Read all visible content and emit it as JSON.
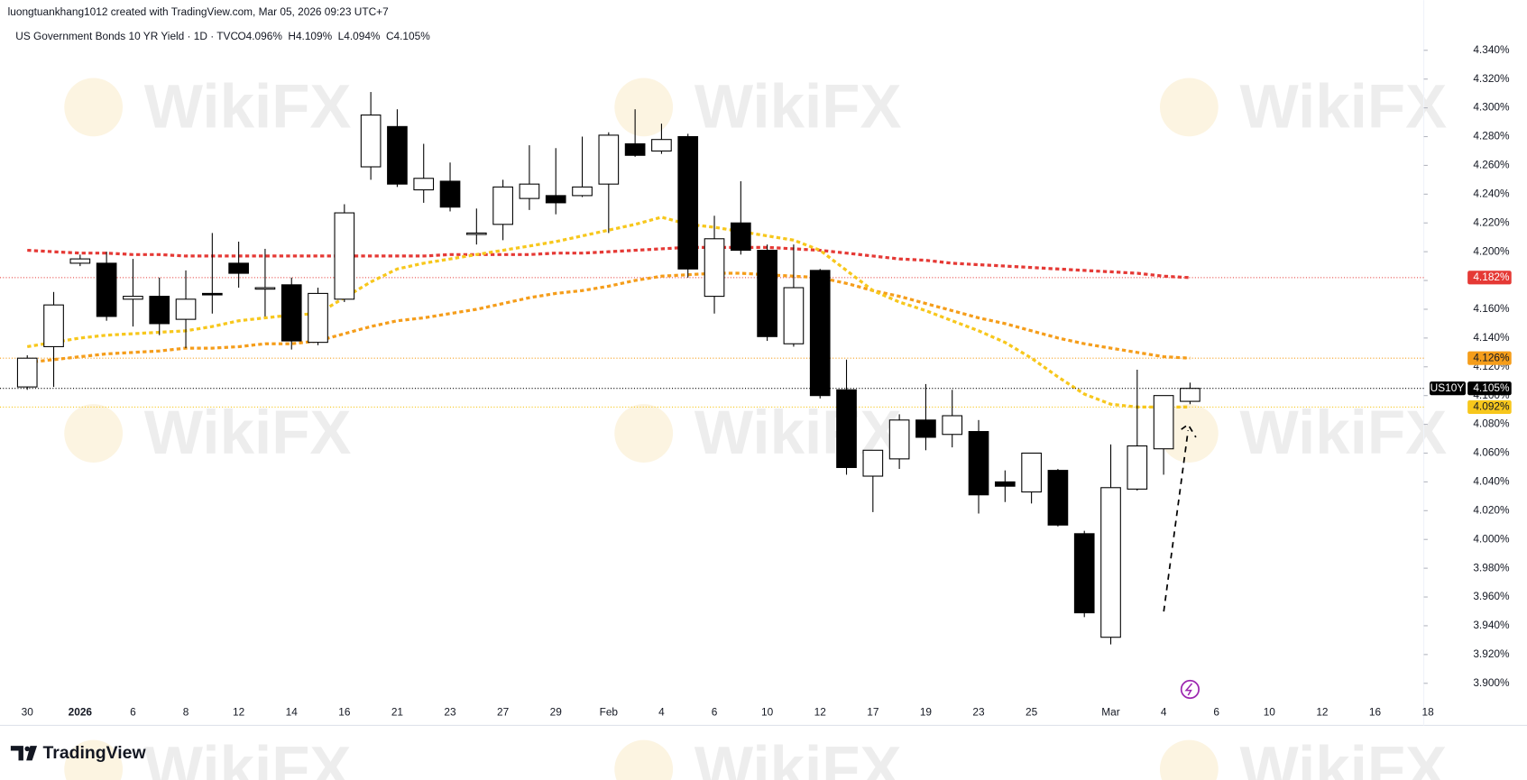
{
  "header": {
    "attribution": "luongtuankhang1012 created with TradingView.com, Mar 05, 2026 09:23 UTC+7",
    "symbol": "US Government Bonds 10 YR Yield · 1D · TVC",
    "ohlc_labels": [
      "O4.096%",
      "H4.109%",
      "L4.094%",
      "C4.105%"
    ]
  },
  "watermark": "WikiFX",
  "footer": {
    "brand": "TradingView"
  },
  "chart_data": {
    "type": "candlestick",
    "categories": [
      "30",
      null,
      "2026",
      null,
      "6",
      null,
      "8",
      null,
      "12",
      null,
      "14",
      null,
      "16",
      null,
      "21",
      null,
      "23",
      null,
      "27",
      null,
      "29",
      null,
      "Feb",
      null,
      "4",
      null,
      "6",
      null,
      "10",
      null,
      "12",
      null,
      "17",
      null,
      "19",
      null,
      "23",
      null,
      "25",
      null,
      null,
      "Mar",
      null,
      "4",
      null
    ],
    "future_x_labels": [
      "6",
      "10",
      "12",
      "16",
      "18"
    ],
    "open": [
      4.106,
      4.134,
      4.192,
      4.192,
      4.167,
      4.169,
      4.153,
      4.171,
      4.192,
      4.175,
      4.177,
      4.137,
      4.167,
      4.259,
      4.287,
      4.243,
      4.249,
      4.213,
      4.219,
      4.237,
      4.239,
      4.239,
      4.247,
      4.275,
      4.27,
      4.28,
      4.169,
      4.22,
      4.201,
      4.136,
      4.187,
      4.104,
      4.044,
      4.056,
      4.083,
      4.073,
      4.075,
      4.04,
      4.033,
      4.048,
      4.004,
      3.932,
      4.035,
      4.063,
      4.096
    ],
    "high": [
      4.128,
      4.172,
      4.198,
      4.2,
      4.195,
      4.182,
      4.187,
      4.213,
      4.207,
      4.202,
      4.182,
      4.175,
      4.233,
      4.311,
      4.299,
      4.275,
      4.262,
      4.23,
      4.25,
      4.274,
      4.272,
      4.28,
      4.283,
      4.299,
      4.289,
      4.282,
      4.225,
      4.249,
      4.205,
      4.205,
      4.188,
      4.125,
      4.062,
      4.087,
      4.108,
      4.104,
      4.083,
      4.048,
      4.06,
      4.049,
      4.006,
      4.066,
      4.118,
      4.1,
      4.109
    ],
    "low": [
      4.104,
      4.106,
      4.19,
      4.152,
      4.148,
      4.142,
      4.133,
      4.157,
      4.175,
      4.155,
      4.132,
      4.135,
      4.165,
      4.25,
      4.245,
      4.234,
      4.228,
      4.205,
      4.208,
      4.229,
      4.226,
      4.238,
      4.213,
      4.266,
      4.268,
      4.182,
      4.157,
      4.198,
      4.138,
      4.134,
      4.098,
      4.045,
      4.019,
      4.049,
      4.062,
      4.064,
      4.018,
      4.026,
      4.025,
      4.009,
      3.946,
      3.927,
      4.034,
      4.045,
      4.094
    ],
    "close": [
      4.126,
      4.163,
      4.195,
      4.155,
      4.169,
      4.15,
      4.167,
      4.17,
      4.185,
      4.175,
      4.138,
      4.171,
      4.227,
      4.295,
      4.247,
      4.251,
      4.231,
      4.213,
      4.245,
      4.247,
      4.234,
      4.245,
      4.281,
      4.267,
      4.278,
      4.188,
      4.209,
      4.201,
      4.141,
      4.175,
      4.1,
      4.05,
      4.062,
      4.083,
      4.071,
      4.086,
      4.031,
      4.037,
      4.06,
      4.01,
      3.949,
      4.036,
      4.065,
      4.1,
      4.105
    ],
    "up_color": "#ffffff",
    "down_color": "#000000",
    "last_price": {
      "name": "US10Y",
      "value": 4.105,
      "label": "4.105%"
    },
    "series": [
      {
        "color": "#e53935",
        "last_label": "4.182%",
        "values": [
          4.201,
          4.2,
          4.199,
          4.199,
          4.198,
          4.198,
          4.197,
          4.197,
          4.197,
          4.197,
          4.197,
          4.197,
          4.197,
          4.197,
          4.197,
          4.197,
          4.198,
          4.198,
          4.198,
          4.198,
          4.199,
          4.199,
          4.2,
          4.201,
          4.202,
          4.203,
          4.203,
          4.203,
          4.203,
          4.202,
          4.201,
          4.199,
          4.197,
          4.195,
          4.194,
          4.192,
          4.191,
          4.19,
          4.189,
          4.188,
          4.187,
          4.186,
          4.185,
          4.183,
          4.182
        ]
      },
      {
        "color": "#f59d1a",
        "last_label": "4.126%",
        "values": [
          4.123,
          4.125,
          4.127,
          4.129,
          4.13,
          4.131,
          4.133,
          4.133,
          4.134,
          4.136,
          4.136,
          4.138,
          4.143,
          4.148,
          4.152,
          4.154,
          4.157,
          4.16,
          4.164,
          4.168,
          4.171,
          4.173,
          4.176,
          4.18,
          4.183,
          4.184,
          4.185,
          4.185,
          4.184,
          4.183,
          4.182,
          4.178,
          4.173,
          4.169,
          4.164,
          4.159,
          4.154,
          4.15,
          4.145,
          4.14,
          4.136,
          4.133,
          4.13,
          4.127,
          4.126
        ]
      },
      {
        "color": "#f7c71c",
        "last_label": "4.092%",
        "values": [
          4.134,
          4.137,
          4.14,
          4.142,
          4.143,
          4.144,
          4.145,
          4.148,
          4.152,
          4.154,
          4.156,
          4.157,
          4.168,
          4.179,
          4.188,
          4.192,
          4.195,
          4.198,
          4.201,
          4.204,
          4.207,
          4.211,
          4.215,
          4.219,
          4.224,
          4.219,
          4.217,
          4.214,
          4.211,
          4.208,
          4.201,
          4.187,
          4.173,
          4.165,
          4.159,
          4.152,
          4.145,
          4.137,
          4.126,
          4.113,
          4.101,
          4.094,
          4.092,
          4.092,
          4.092
        ]
      }
    ],
    "ylim": [
      3.889,
      4.358
    ],
    "yticks": [
      {
        "value": 4.34,
        "label": "4.340%"
      },
      {
        "value": 4.32,
        "label": "4.320%"
      },
      {
        "value": 4.3,
        "label": "4.300%"
      },
      {
        "value": 4.28,
        "label": "4.280%"
      },
      {
        "value": 4.26,
        "label": "4.260%"
      },
      {
        "value": 4.24,
        "label": "4.240%"
      },
      {
        "value": 4.22,
        "label": "4.220%"
      },
      {
        "value": 4.2,
        "label": "4.200%"
      },
      {
        "value": 4.18,
        "label": "4.180%"
      },
      {
        "value": 4.16,
        "label": "4.160%"
      },
      {
        "value": 4.14,
        "label": "4.140%"
      },
      {
        "value": 4.12,
        "label": "4.120%"
      },
      {
        "value": 4.1,
        "label": "4.100%"
      },
      {
        "value": 4.08,
        "label": "4.080%"
      },
      {
        "value": 4.06,
        "label": "4.060%"
      },
      {
        "value": 4.04,
        "label": "4.040%"
      },
      {
        "value": 4.02,
        "label": "4.020%"
      },
      {
        "value": 4.0,
        "label": "4.000%"
      },
      {
        "value": 3.98,
        "label": "3.980%"
      },
      {
        "value": 3.96,
        "label": "3.960%"
      },
      {
        "value": 3.94,
        "label": "3.940%"
      },
      {
        "value": 3.92,
        "label": "3.920%"
      },
      {
        "value": 3.9,
        "label": "3.900%"
      }
    ],
    "grid": false
  }
}
